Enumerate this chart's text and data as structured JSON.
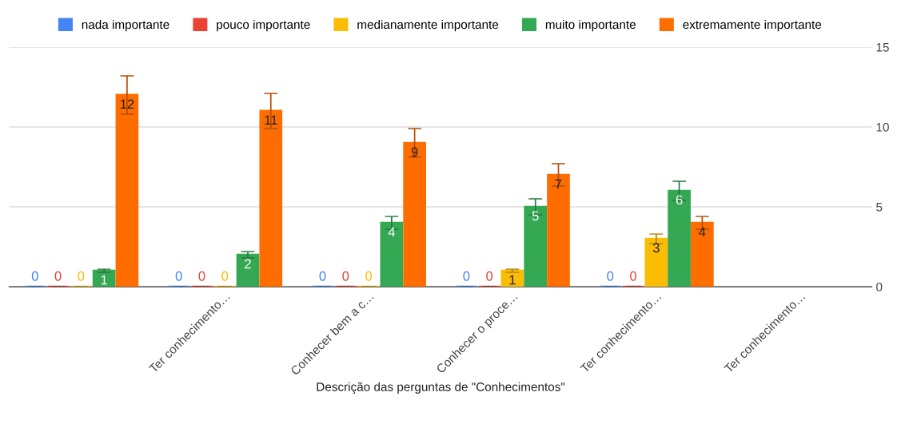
{
  "chart_data": {
    "type": "bar",
    "xlabel": "Descrição das perguntas de \"Conhecimentos\"",
    "categories": [
      null,
      "Ter conhecimento…",
      "Conhecer bem a c…",
      "Conhecer o proce…",
      "Ter conhecimento…",
      "Ter conhecimento…"
    ],
    "series": [
      {
        "name": "nada importante",
        "color": "#4285f4",
        "values": [
          0,
          0,
          0,
          0,
          0,
          null
        ],
        "errors": [
          0,
          0,
          0,
          0,
          0,
          null
        ]
      },
      {
        "name": "pouco importante",
        "color": "#ea4335",
        "values": [
          0,
          0,
          0,
          0,
          0,
          null
        ],
        "errors": [
          0,
          0,
          0,
          0,
          0,
          null
        ]
      },
      {
        "name": "medianamente importante",
        "color": "#fbbc04",
        "values": [
          0,
          0,
          0,
          1,
          3,
          null
        ],
        "errors": [
          0,
          0,
          0,
          0.1,
          0.3,
          null
        ]
      },
      {
        "name": "muito importante",
        "color": "#34a853",
        "values": [
          1,
          2,
          4,
          5,
          6,
          null
        ],
        "errors": [
          0.1,
          0.2,
          0.4,
          0.5,
          0.6,
          null
        ]
      },
      {
        "name": "extremamente importante",
        "color": "#ff6d01",
        "values": [
          12,
          11,
          9,
          7,
          4,
          null
        ],
        "errors": [
          1.2,
          1.1,
          0.9,
          0.7,
          0.4,
          null
        ]
      }
    ],
    "ylim": [
      0,
      15
    ],
    "yticks": [
      0,
      5,
      10,
      15
    ],
    "grid": "y",
    "legend": "top",
    "data_labels": true
  }
}
